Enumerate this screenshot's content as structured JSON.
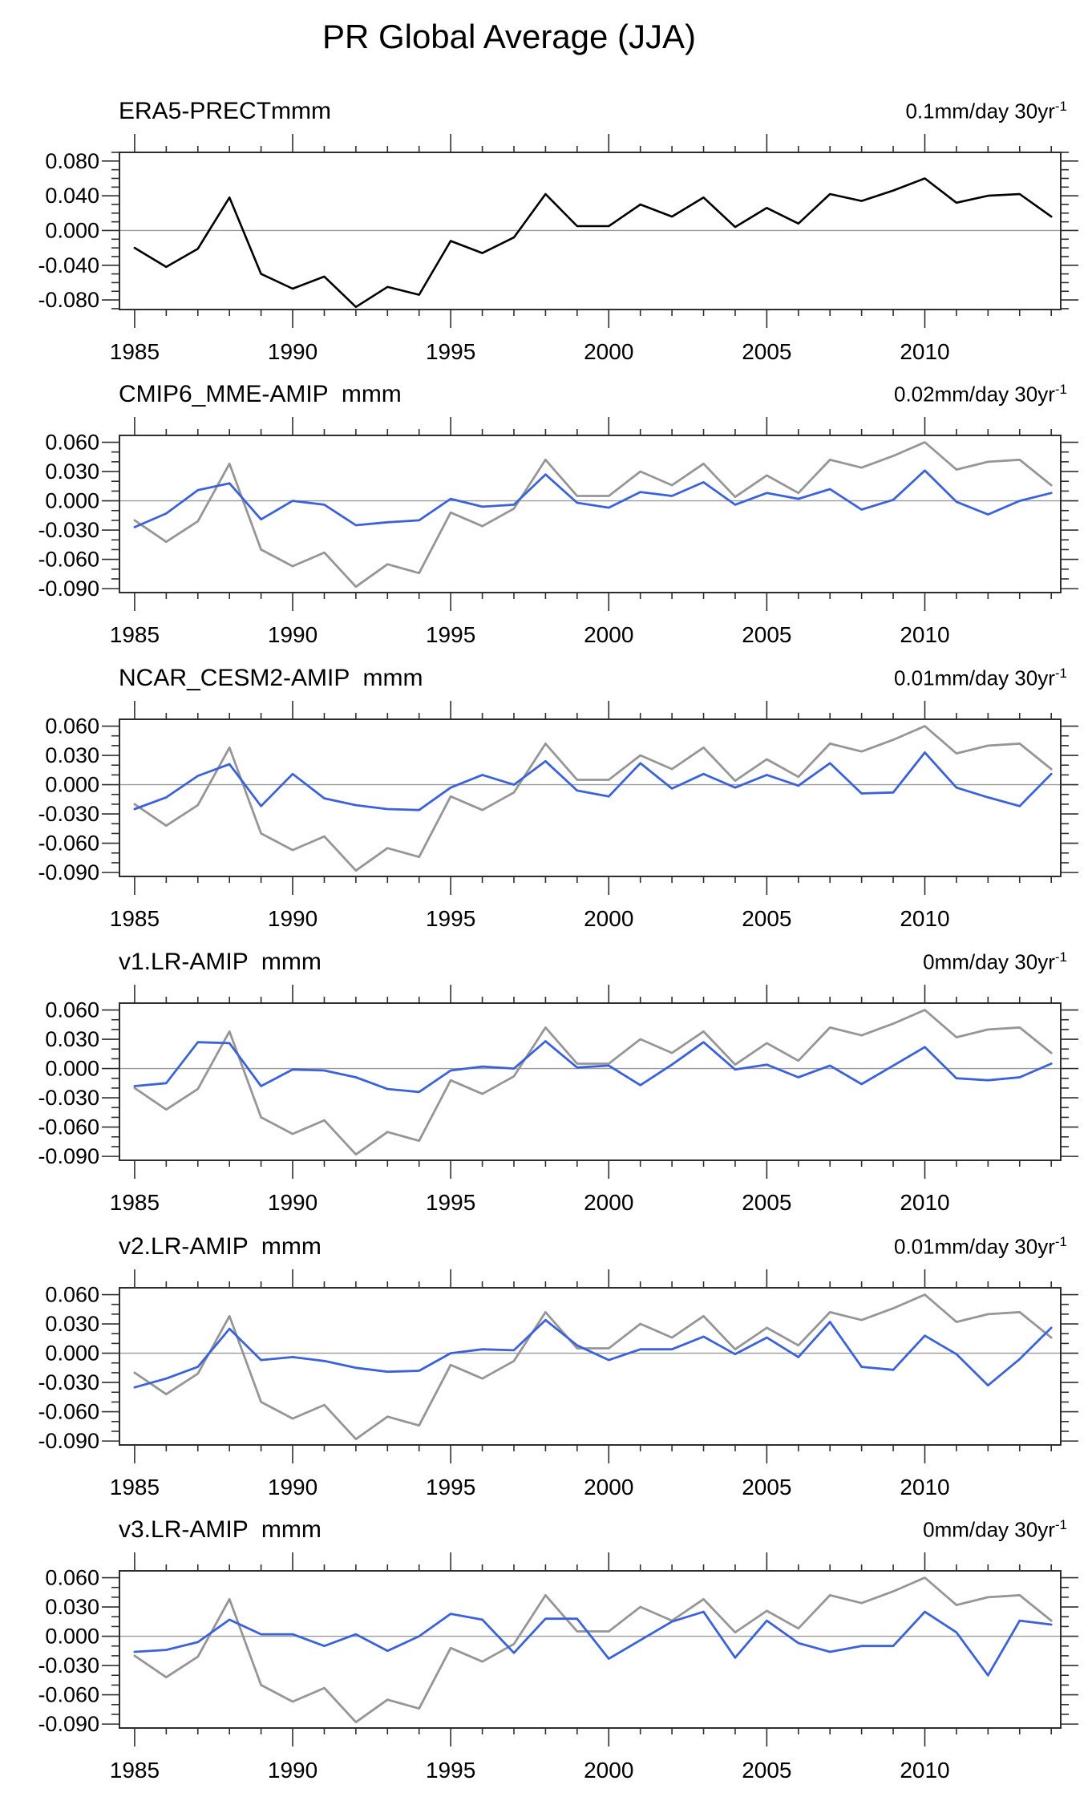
{
  "title": "PR Global Average (JJA)",
  "style": {
    "background": "#ffffff",
    "model_color": "#3b62d9",
    "reference_color": "#969696",
    "obs_color": "#000000",
    "zero_line_color": "#9a9a9a",
    "axis_color": "#2e2e2e"
  },
  "years": [
    1985,
    1986,
    1987,
    1988,
    1989,
    1990,
    1991,
    1992,
    1993,
    1994,
    1995,
    1996,
    1997,
    1998,
    1999,
    2000,
    2001,
    2002,
    2003,
    2004,
    2005,
    2006,
    2007,
    2008,
    2009,
    2010,
    2011,
    2012,
    2013,
    2014
  ],
  "x_ticks": [
    1985,
    1990,
    1995,
    2000,
    2005,
    2010
  ],
  "x_tick_labels": [
    "1985",
    "1990",
    "1995",
    "2000",
    "2005",
    "2010"
  ],
  "chart_data": [
    {
      "type": "line",
      "title": "ERA5-PRECTmmm",
      "trend_text": "0.1mm/day 30yr",
      "trend_exp": "-1",
      "xlim": [
        1984.52,
        2014.3
      ],
      "ylim": [
        -0.091,
        0.09
      ],
      "y_ticks": [
        0.08,
        0.04,
        0.0,
        -0.04,
        -0.08
      ],
      "y_tick_labels": [
        "0.080",
        "0.040",
        "0.000",
        "-0.040",
        "-0.080"
      ],
      "y_minor_step": 0.01,
      "grid": "zero-line-only",
      "series": [
        {
          "name": "ERA5-PRECT",
          "color_key": "obs_color",
          "width": 2.6,
          "values": [
            -0.02,
            -0.042,
            -0.021,
            0.038,
            -0.05,
            -0.067,
            -0.053,
            -0.088,
            -0.065,
            -0.074,
            -0.012,
            -0.026,
            -0.008,
            0.042,
            0.005,
            0.005,
            0.03,
            0.016,
            0.038,
            0.004,
            0.026,
            0.008,
            0.042,
            0.034,
            0.046,
            0.06,
            0.032,
            0.04,
            0.042,
            0.016
          ]
        }
      ]
    },
    {
      "type": "line",
      "title": "CMIP6_MME-AMIP  mmm",
      "trend_text": "0.02mm/day 30yr",
      "trend_exp": "-1",
      "xlim": [
        1984.52,
        2014.3
      ],
      "ylim": [
        -0.094,
        0.067
      ],
      "y_ticks": [
        0.06,
        0.03,
        0.0,
        -0.03,
        -0.06,
        -0.09
      ],
      "y_tick_labels": [
        "0.060",
        "0.030",
        "0.000",
        "-0.030",
        "-0.060",
        "-0.090"
      ],
      "y_minor_step": 0.01,
      "grid": "zero-line-only",
      "series": [
        {
          "name": "ERA5-PRECT",
          "color_key": "reference_color",
          "width": 2.8,
          "values": [
            -0.02,
            -0.042,
            -0.021,
            0.038,
            -0.05,
            -0.067,
            -0.053,
            -0.088,
            -0.065,
            -0.074,
            -0.012,
            -0.026,
            -0.008,
            0.042,
            0.005,
            0.005,
            0.03,
            0.016,
            0.038,
            0.004,
            0.026,
            0.008,
            0.042,
            0.034,
            0.046,
            0.06,
            0.032,
            0.04,
            0.042,
            0.016
          ]
        },
        {
          "name": "CMIP6_MME-AMIP",
          "color_key": "model_color",
          "width": 2.8,
          "values": [
            -0.027,
            -0.013,
            0.011,
            0.018,
            -0.019,
            0.0,
            -0.004,
            -0.025,
            -0.022,
            -0.02,
            0.002,
            -0.006,
            -0.004,
            0.027,
            -0.002,
            -0.007,
            0.009,
            0.005,
            0.019,
            -0.004,
            0.008,
            0.002,
            0.012,
            -0.009,
            0.001,
            0.031,
            -0.001,
            -0.014,
            0.0,
            0.008
          ]
        }
      ]
    },
    {
      "type": "line",
      "title": "NCAR_CESM2-AMIP  mmm",
      "trend_text": "0.01mm/day 30yr",
      "trend_exp": "-1",
      "xlim": [
        1984.52,
        2014.3
      ],
      "ylim": [
        -0.094,
        0.067
      ],
      "y_ticks": [
        0.06,
        0.03,
        0.0,
        -0.03,
        -0.06,
        -0.09
      ],
      "y_tick_labels": [
        "0.060",
        "0.030",
        "0.000",
        "-0.030",
        "-0.060",
        "-0.090"
      ],
      "y_minor_step": 0.01,
      "grid": "zero-line-only",
      "series": [
        {
          "name": "ERA5-PRECT",
          "color_key": "reference_color",
          "width": 2.8,
          "values": [
            -0.02,
            -0.042,
            -0.021,
            0.038,
            -0.05,
            -0.067,
            -0.053,
            -0.088,
            -0.065,
            -0.074,
            -0.012,
            -0.026,
            -0.008,
            0.042,
            0.005,
            0.005,
            0.03,
            0.016,
            0.038,
            0.004,
            0.026,
            0.008,
            0.042,
            0.034,
            0.046,
            0.06,
            0.032,
            0.04,
            0.042,
            0.016
          ]
        },
        {
          "name": "NCAR_CESM2-AMIP",
          "color_key": "model_color",
          "width": 2.8,
          "values": [
            -0.025,
            -0.013,
            0.009,
            0.021,
            -0.022,
            0.011,
            -0.014,
            -0.021,
            -0.025,
            -0.026,
            -0.003,
            0.01,
            0.0,
            0.024,
            -0.006,
            -0.012,
            0.022,
            -0.004,
            0.011,
            -0.003,
            0.01,
            -0.001,
            0.022,
            -0.009,
            -0.008,
            0.033,
            -0.003,
            -0.013,
            -0.022,
            0.011
          ]
        }
      ]
    },
    {
      "type": "line",
      "title": "v1.LR-AMIP  mmm",
      "trend_text": "0mm/day 30yr",
      "trend_exp": "-1",
      "xlim": [
        1984.52,
        2014.3
      ],
      "ylim": [
        -0.094,
        0.067
      ],
      "y_ticks": [
        0.06,
        0.03,
        0.0,
        -0.03,
        -0.06,
        -0.09
      ],
      "y_tick_labels": [
        "0.060",
        "0.030",
        "0.000",
        "-0.030",
        "-0.060",
        "-0.090"
      ],
      "y_minor_step": 0.01,
      "grid": "zero-line-only",
      "series": [
        {
          "name": "ERA5-PRECT",
          "color_key": "reference_color",
          "width": 2.8,
          "values": [
            -0.02,
            -0.042,
            -0.021,
            0.038,
            -0.05,
            -0.067,
            -0.053,
            -0.088,
            -0.065,
            -0.074,
            -0.012,
            -0.026,
            -0.008,
            0.042,
            0.005,
            0.005,
            0.03,
            0.016,
            0.038,
            0.004,
            0.026,
            0.008,
            0.042,
            0.034,
            0.046,
            0.06,
            0.032,
            0.04,
            0.042,
            0.016
          ]
        },
        {
          "name": "v1.LR-AMIP",
          "color_key": "model_color",
          "width": 2.8,
          "values": [
            -0.018,
            -0.015,
            0.027,
            0.026,
            -0.018,
            -0.001,
            -0.002,
            -0.009,
            -0.021,
            -0.024,
            -0.002,
            0.002,
            0.0,
            0.028,
            0.001,
            0.003,
            -0.017,
            0.004,
            0.027,
            -0.001,
            0.004,
            -0.009,
            0.003,
            -0.016,
            0.003,
            0.022,
            -0.01,
            -0.012,
            -0.009,
            0.005
          ]
        }
      ]
    },
    {
      "type": "line",
      "title": "v2.LR-AMIP  mmm",
      "trend_text": "0.01mm/day 30yr",
      "trend_exp": "-1",
      "xlim": [
        1984.52,
        2014.3
      ],
      "ylim": [
        -0.094,
        0.067
      ],
      "y_ticks": [
        0.06,
        0.03,
        0.0,
        -0.03,
        -0.06,
        -0.09
      ],
      "y_tick_labels": [
        "0.060",
        "0.030",
        "0.000",
        "-0.030",
        "-0.060",
        "-0.090"
      ],
      "y_minor_step": 0.01,
      "grid": "zero-line-only",
      "series": [
        {
          "name": "ERA5-PRECT",
          "color_key": "reference_color",
          "width": 2.8,
          "values": [
            -0.02,
            -0.042,
            -0.021,
            0.038,
            -0.05,
            -0.067,
            -0.053,
            -0.088,
            -0.065,
            -0.074,
            -0.012,
            -0.026,
            -0.008,
            0.042,
            0.005,
            0.005,
            0.03,
            0.016,
            0.038,
            0.004,
            0.026,
            0.008,
            0.042,
            0.034,
            0.046,
            0.06,
            0.032,
            0.04,
            0.042,
            0.016
          ]
        },
        {
          "name": "v2.LR-AMIP",
          "color_key": "model_color",
          "width": 2.8,
          "values": [
            -0.035,
            -0.026,
            -0.014,
            0.025,
            -0.007,
            -0.004,
            -0.008,
            -0.015,
            -0.019,
            -0.018,
            0.0,
            0.004,
            0.003,
            0.034,
            0.008,
            -0.007,
            0.004,
            0.004,
            0.017,
            -0.001,
            0.016,
            -0.004,
            0.032,
            -0.014,
            -0.017,
            0.018,
            -0.001,
            -0.033,
            -0.006,
            0.026
          ]
        }
      ]
    },
    {
      "type": "line",
      "title": "v3.LR-AMIP  mmm",
      "trend_text": "0mm/day 30yr",
      "trend_exp": "-1",
      "xlim": [
        1984.52,
        2014.3
      ],
      "ylim": [
        -0.094,
        0.067
      ],
      "y_ticks": [
        0.06,
        0.03,
        0.0,
        -0.03,
        -0.06,
        -0.09
      ],
      "y_tick_labels": [
        "0.060",
        "0.030",
        "0.000",
        "-0.030",
        "-0.060",
        "-0.090"
      ],
      "y_minor_step": 0.01,
      "grid": "zero-line-only",
      "series": [
        {
          "name": "ERA5-PRECT",
          "color_key": "reference_color",
          "width": 2.8,
          "values": [
            -0.02,
            -0.042,
            -0.021,
            0.038,
            -0.05,
            -0.067,
            -0.053,
            -0.088,
            -0.065,
            -0.074,
            -0.012,
            -0.026,
            -0.008,
            0.042,
            0.005,
            0.005,
            0.03,
            0.016,
            0.038,
            0.004,
            0.026,
            0.008,
            0.042,
            0.034,
            0.046,
            0.06,
            0.032,
            0.04,
            0.042,
            0.016
          ]
        },
        {
          "name": "v3.LR-AMIP",
          "color_key": "model_color",
          "width": 2.8,
          "values": [
            -0.016,
            -0.014,
            -0.006,
            0.017,
            0.002,
            0.002,
            -0.01,
            0.002,
            -0.015,
            0.0,
            0.023,
            0.017,
            -0.017,
            0.018,
            0.018,
            -0.023,
            -0.004,
            0.015,
            0.025,
            -0.022,
            0.016,
            -0.007,
            -0.016,
            -0.01,
            -0.01,
            0.025,
            0.004,
            -0.04,
            0.016,
            0.012
          ]
        }
      ]
    }
  ]
}
